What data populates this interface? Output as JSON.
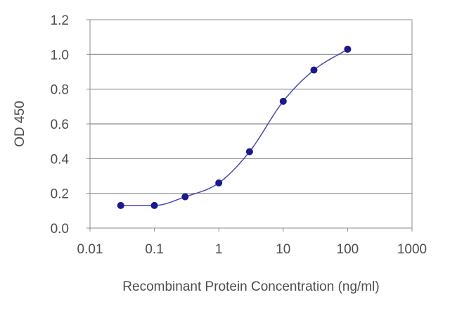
{
  "chart_data": {
    "type": "scatter",
    "title": "",
    "xlabel": "Recombinant Protein Concentration (ng/ml)",
    "ylabel": "OD 450",
    "x_scale": "log",
    "xlim": [
      0.01,
      1000
    ],
    "ylim": [
      0,
      1.2
    ],
    "x_ticks": [
      0.01,
      0.1,
      1,
      10,
      100,
      1000
    ],
    "x_tick_labels": [
      "0.01",
      "0.1",
      "1",
      "10",
      "100",
      "1000"
    ],
    "y_ticks": [
      0.0,
      0.2,
      0.4,
      0.6,
      0.8,
      1.0,
      1.2
    ],
    "y_tick_labels": [
      "0.0",
      "0.2",
      "0.4",
      "0.6",
      "0.8",
      "1.0",
      "1.2"
    ],
    "grid": "horizontal",
    "legend": "none",
    "series": [
      {
        "x": [
          0.03,
          0.1,
          0.3,
          1,
          3,
          10,
          30,
          100
        ],
        "y": [
          0.13,
          0.13,
          0.18,
          0.26,
          0.44,
          0.73,
          0.91,
          1.03
        ],
        "fitted_curve": true
      }
    ],
    "colors": {
      "marker": "#1a1a8c",
      "line": "#4a4ab0",
      "grid": "#8c8c8c",
      "axis": "#8c8c8c",
      "text": "#4d4d4d"
    }
  }
}
